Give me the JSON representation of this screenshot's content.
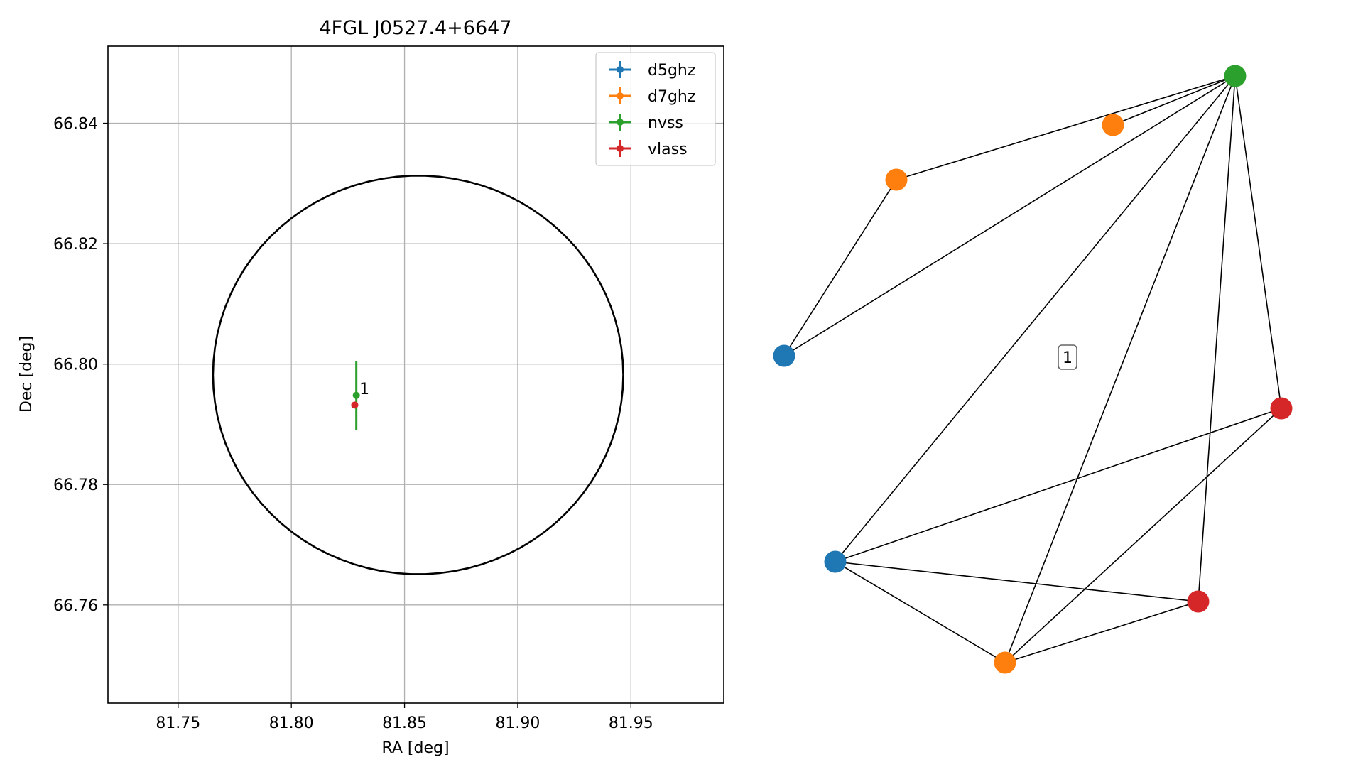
{
  "chart_data": [
    {
      "type": "scatter",
      "title": "4FGL J0527.4+6647",
      "xlabel": "RA [deg]",
      "ylabel": "Dec [deg]",
      "xlim": [
        81.719,
        81.991
      ],
      "ylim": [
        66.7437,
        66.8528
      ],
      "xticks": [
        81.75,
        81.8,
        81.85,
        81.9,
        81.95
      ],
      "xtick_labels": [
        "81.75",
        "81.80",
        "81.85",
        "81.90",
        "81.95"
      ],
      "yticks": [
        66.76,
        66.78,
        66.8,
        66.82,
        66.84
      ],
      "ytick_labels": [
        "66.76",
        "66.78",
        "66.80",
        "66.82",
        "66.84"
      ],
      "grid": true,
      "legend_position": "top-right",
      "uncertainty_ellipse": {
        "center_ra": 81.856,
        "center_dec": 66.7982,
        "semi_major_ra": 0.0906,
        "semi_minor_dec": 0.0331
      },
      "series": [
        {
          "name": "d5ghz",
          "color": "#1f77b4",
          "points": []
        },
        {
          "name": "d7ghz",
          "color": "#ff7f0e",
          "points": []
        },
        {
          "name": "nvss",
          "color": "#2ca02c",
          "points": [
            {
              "x": 81.8287,
              "y": 66.7948,
              "yerr": 0.0057
            }
          ]
        },
        {
          "name": "vlass",
          "color": "#d62728",
          "points": [
            {
              "x": 81.828,
              "y": 66.7932,
              "yerr": 0.0004
            }
          ]
        }
      ],
      "annotations": [
        {
          "text": "1",
          "x": 81.8298,
          "y": 66.7955
        }
      ]
    },
    {
      "type": "network",
      "label": "1",
      "nodes": [
        {
          "id": "n1",
          "series": "nvss",
          "color": "#2ca02c"
        },
        {
          "id": "o1",
          "series": "d7ghz",
          "color": "#ff7f0e"
        },
        {
          "id": "o2",
          "series": "d7ghz",
          "color": "#ff7f0e"
        },
        {
          "id": "b1",
          "series": "d5ghz",
          "color": "#1f77b4"
        },
        {
          "id": "r1",
          "series": "vlass",
          "color": "#d62728"
        },
        {
          "id": "b2",
          "series": "d5ghz",
          "color": "#1f77b4"
        },
        {
          "id": "r2",
          "series": "vlass",
          "color": "#d62728"
        },
        {
          "id": "o3",
          "series": "d7ghz",
          "color": "#ff7f0e"
        }
      ],
      "edges": [
        [
          "n1",
          "o1"
        ],
        [
          "n1",
          "o2"
        ],
        [
          "n1",
          "b1"
        ],
        [
          "n1",
          "b2"
        ],
        [
          "n1",
          "o3"
        ],
        [
          "n1",
          "r2"
        ],
        [
          "n1",
          "r1"
        ],
        [
          "o2",
          "b1"
        ],
        [
          "b2",
          "r1"
        ],
        [
          "b2",
          "r2"
        ],
        [
          "b2",
          "o3"
        ],
        [
          "o3",
          "r1"
        ],
        [
          "o3",
          "r2"
        ]
      ]
    }
  ]
}
